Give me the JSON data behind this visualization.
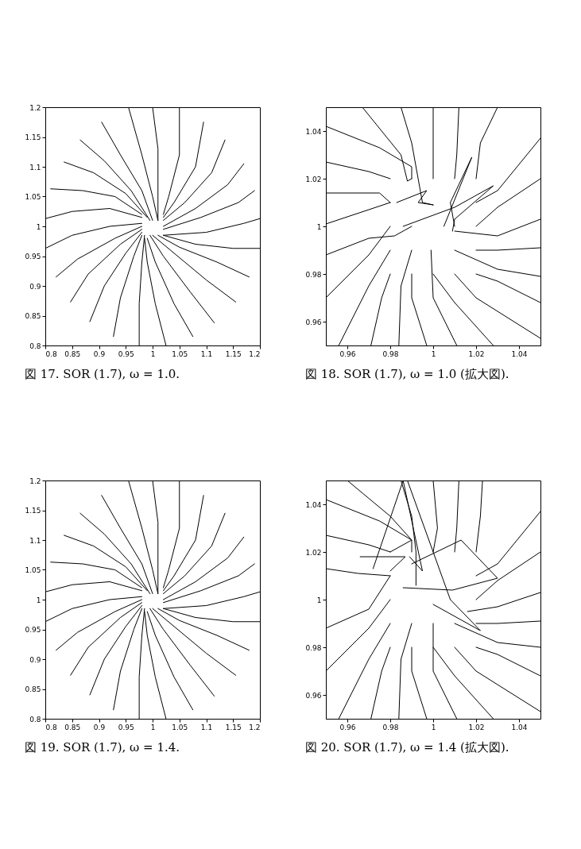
{
  "chart_data": [
    {
      "type": "line",
      "title": "図 17. SOR (1.7), ω = 1.0.",
      "xlim": [
        0.8,
        1.2
      ],
      "ylim": [
        0.8,
        1.2
      ],
      "xticks": [
        0.8,
        0.85,
        0.9,
        0.95,
        1,
        1.05,
        1.1,
        1.15,
        1.2
      ],
      "yticks": [
        0.8,
        0.85,
        0.9,
        0.95,
        1,
        1.05,
        1.1,
        1.15,
        1.2
      ],
      "line_style": "solid",
      "series": [
        {
          "color": "#000000",
          "x": [
            0.955,
            0.98,
            1.0,
            1.01
          ],
          "values": [
            1.2,
            1.12,
            1.05,
            1.01
          ]
        },
        {
          "color": "#000000",
          "x": [
            1.0,
            1.01,
            1.01,
            1.01
          ],
          "values": [
            1.2,
            1.13,
            1.06,
            1.01
          ]
        },
        {
          "color": "#000000",
          "x": [
            1.05,
            1.05,
            1.03,
            1.02
          ],
          "values": [
            1.2,
            1.12,
            1.05,
            1.02
          ]
        },
        {
          "color": "#000000",
          "x": [
            1.095,
            1.08,
            1.04,
            1.02
          ],
          "values": [
            1.175,
            1.1,
            1.04,
            1.015
          ]
        },
        {
          "color": "#000000",
          "x": [
            1.135,
            1.11,
            1.06,
            1.02
          ],
          "values": [
            1.145,
            1.09,
            1.04,
            1.01
          ]
        },
        {
          "color": "#000000",
          "x": [
            1.17,
            1.14,
            1.08,
            1.02
          ],
          "values": [
            1.105,
            1.07,
            1.03,
            1.0
          ]
        },
        {
          "color": "#000000",
          "x": [
            1.19,
            1.16,
            1.09,
            1.02
          ],
          "values": [
            1.06,
            1.04,
            1.015,
            0.995
          ]
        },
        {
          "color": "#000000",
          "x": [
            1.2,
            1.17,
            1.1,
            1.02
          ],
          "values": [
            1.013,
            1.005,
            0.99,
            0.985
          ]
        },
        {
          "color": "#000000",
          "x": [
            1.2,
            1.15,
            1.08,
            1.02
          ],
          "values": [
            0.963,
            0.963,
            0.97,
            0.985
          ]
        },
        {
          "color": "#000000",
          "x": [
            1.18,
            1.12,
            1.05,
            1.01
          ],
          "values": [
            0.915,
            0.94,
            0.965,
            0.985
          ]
        },
        {
          "color": "#000000",
          "x": [
            1.155,
            1.1,
            1.04,
            1.0
          ],
          "values": [
            0.873,
            0.91,
            0.955,
            0.985
          ]
        },
        {
          "color": "#000000",
          "x": [
            1.115,
            1.07,
            1.02,
            0.995
          ],
          "values": [
            0.838,
            0.89,
            0.95,
            0.985
          ]
        },
        {
          "color": "#000000",
          "x": [
            1.075,
            1.04,
            1.005,
            0.99
          ],
          "values": [
            0.815,
            0.87,
            0.94,
            0.98
          ]
        },
        {
          "color": "#000000",
          "x": [
            1.025,
            1.005,
            0.99,
            0.985
          ],
          "values": [
            0.8,
            0.87,
            0.94,
            0.98
          ]
        },
        {
          "color": "#000000",
          "x": [
            0.975,
            0.975,
            0.98,
            0.985
          ],
          "values": [
            0.8,
            0.87,
            0.94,
            0.985
          ]
        },
        {
          "color": "#000000",
          "x": [
            0.927,
            0.94,
            0.965,
            0.98
          ],
          "values": [
            0.815,
            0.88,
            0.95,
            0.985
          ]
        },
        {
          "color": "#000000",
          "x": [
            0.883,
            0.91,
            0.95,
            0.98
          ],
          "values": [
            0.84,
            0.9,
            0.955,
            0.99
          ]
        },
        {
          "color": "#000000",
          "x": [
            0.847,
            0.88,
            0.94,
            0.98
          ],
          "values": [
            0.873,
            0.92,
            0.97,
            0.995
          ]
        },
        {
          "color": "#000000",
          "x": [
            0.82,
            0.86,
            0.93,
            0.98
          ],
          "values": [
            0.915,
            0.945,
            0.98,
            1.0
          ]
        },
        {
          "color": "#000000",
          "x": [
            0.8,
            0.85,
            0.92,
            0.98
          ],
          "values": [
            0.963,
            0.985,
            1.0,
            1.005
          ]
        },
        {
          "color": "#000000",
          "x": [
            0.8,
            0.85,
            0.92,
            0.98
          ],
          "values": [
            1.013,
            1.025,
            1.03,
            1.015
          ]
        },
        {
          "color": "#000000",
          "x": [
            0.81,
            0.87,
            0.93,
            0.98
          ],
          "values": [
            1.063,
            1.06,
            1.05,
            1.02
          ]
        },
        {
          "color": "#000000",
          "x": [
            0.835,
            0.89,
            0.95,
            0.99
          ],
          "values": [
            1.108,
            1.09,
            1.055,
            1.015
          ]
        },
        {
          "color": "#000000",
          "x": [
            0.865,
            0.91,
            0.96,
            0.995
          ],
          "values": [
            1.145,
            1.11,
            1.06,
            1.01
          ]
        },
        {
          "color": "#000000",
          "x": [
            0.905,
            0.94,
            0.98,
            1.0
          ],
          "values": [
            1.175,
            1.12,
            1.06,
            1.01
          ]
        }
      ]
    },
    {
      "type": "line",
      "title": "図 18. SOR (1.7), ω = 1.0 (拡大図).",
      "xlim": [
        0.95,
        1.05
      ],
      "ylim": [
        0.95,
        1.05
      ],
      "xticks": [
        0.96,
        0.98,
        1,
        1.02,
        1.04
      ],
      "yticks": [
        0.96,
        0.98,
        1,
        1.02,
        1.04
      ],
      "line_style": "solid",
      "series": [
        {
          "color": "#000000",
          "x": [
            0.95,
            0.975,
            0.99,
            0.99
          ],
          "values": [
            1.042,
            1.033,
            1.025,
            1.02
          ]
        },
        {
          "color": "#000000",
          "x": [
            0.95,
            0.97,
            0.98
          ],
          "values": [
            1.027,
            1.023,
            1.02
          ]
        },
        {
          "color": "#000000",
          "x": [
            0.967,
            0.985,
            0.988,
            0.99
          ],
          "values": [
            1.05,
            1.03,
            1.019,
            1.02
          ]
        },
        {
          "color": "#000000",
          "x": [
            0.985,
            0.99,
            0.993,
            0.995,
            1.0
          ],
          "values": [
            1.05,
            1.035,
            1.02,
            1.01,
            1.009
          ]
        },
        {
          "color": "#000000",
          "x": [
            1.0,
            1.0,
            1.0
          ],
          "values": [
            1.05,
            1.03,
            1.02
          ]
        },
        {
          "color": "#000000",
          "x": [
            1.012,
            1.011,
            1.01
          ],
          "values": [
            1.05,
            1.03,
            1.02
          ]
        },
        {
          "color": "#000000",
          "x": [
            1.03,
            1.022,
            1.02
          ],
          "values": [
            1.05,
            1.035,
            1.02
          ]
        },
        {
          "color": "#000000",
          "x": [
            1.05,
            1.03,
            1.02
          ],
          "values": [
            1.037,
            1.015,
            1.01
          ]
        },
        {
          "color": "#000000",
          "x": [
            1.05,
            1.03,
            1.02
          ],
          "values": [
            1.02,
            1.008,
            1.0
          ]
        },
        {
          "color": "#000000",
          "x": [
            1.05,
            1.03,
            1.01
          ],
          "values": [
            1.003,
            0.996,
            0.998
          ]
        },
        {
          "color": "#000000",
          "x": [
            1.05,
            1.03,
            1.02
          ],
          "values": [
            0.991,
            0.99,
            0.99
          ]
        },
        {
          "color": "#000000",
          "x": [
            1.05,
            1.03,
            1.01
          ],
          "values": [
            0.979,
            0.982,
            0.99
          ]
        },
        {
          "color": "#000000",
          "x": [
            1.05,
            1.03,
            1.02
          ],
          "values": [
            0.968,
            0.977,
            0.98
          ]
        },
        {
          "color": "#000000",
          "x": [
            1.05,
            1.02,
            1.01
          ],
          "values": [
            0.953,
            0.97,
            0.98
          ]
        },
        {
          "color": "#000000",
          "x": [
            1.028,
            1.01,
            1.0
          ],
          "values": [
            0.95,
            0.968,
            0.98
          ]
        },
        {
          "color": "#000000",
          "x": [
            1.011,
            1.0,
            0.999
          ],
          "values": [
            0.95,
            0.97,
            0.99
          ]
        },
        {
          "color": "#000000",
          "x": [
            0.997,
            0.99,
            0.99
          ],
          "values": [
            0.95,
            0.97,
            0.98
          ]
        },
        {
          "color": "#000000",
          "x": [
            0.984,
            0.985,
            0.99
          ],
          "values": [
            0.95,
            0.975,
            0.99
          ]
        },
        {
          "color": "#000000",
          "x": [
            0.971,
            0.976,
            0.98
          ],
          "values": [
            0.95,
            0.97,
            0.98
          ]
        },
        {
          "color": "#000000",
          "x": [
            0.956,
            0.97,
            0.98
          ],
          "values": [
            0.95,
            0.975,
            0.99
          ]
        },
        {
          "color": "#000000",
          "x": [
            0.95,
            0.97,
            0.98
          ],
          "values": [
            0.97,
            0.988,
            1.0
          ]
        },
        {
          "color": "#000000",
          "x": [
            0.95,
            0.97,
            0.982,
            0.99
          ],
          "values": [
            0.988,
            0.995,
            0.996,
            1.0
          ]
        },
        {
          "color": "#000000",
          "x": [
            0.95,
            0.97,
            0.98
          ],
          "values": [
            1.001,
            1.007,
            1.01
          ]
        },
        {
          "color": "#000000",
          "x": [
            0.95,
            0.975,
            0.98
          ],
          "values": [
            1.014,
            1.014,
            1.01
          ]
        },
        {
          "color": "#000000",
          "x": [
            0.986,
            1.01,
            1.028,
            1.01,
            1.009
          ],
          "values": [
            1.0,
            1.008,
            1.017,
            1.003,
            0.998
          ]
        },
        {
          "color": "#000000",
          "x": [
            1.005,
            1.018,
            1.008,
            1.01
          ],
          "values": [
            1.0,
            1.029,
            1.01,
            1.0
          ]
        },
        {
          "color": "#000000",
          "x": [
            0.983,
            0.997,
            0.993,
            1.0
          ],
          "values": [
            1.01,
            1.015,
            1.01,
            1.009
          ]
        }
      ]
    },
    {
      "type": "line",
      "title": "図 19. SOR (1.7), ω = 1.4.",
      "xlim": [
        0.8,
        1.2
      ],
      "ylim": [
        0.8,
        1.2
      ],
      "xticks": [
        0.8,
        0.85,
        0.9,
        0.95,
        1,
        1.05,
        1.1,
        1.15,
        1.2
      ],
      "yticks": [
        0.8,
        0.85,
        0.9,
        0.95,
        1,
        1.05,
        1.1,
        1.15,
        1.2
      ],
      "line_style": "solid",
      "series": [
        {
          "color": "#000000",
          "x": [
            0.955,
            0.98,
            1.0,
            1.01
          ],
          "values": [
            1.2,
            1.12,
            1.05,
            1.01
          ]
        },
        {
          "color": "#000000",
          "x": [
            1.0,
            1.01,
            1.01,
            1.01
          ],
          "values": [
            1.2,
            1.13,
            1.06,
            1.01
          ]
        },
        {
          "color": "#000000",
          "x": [
            1.05,
            1.05,
            1.03,
            1.02
          ],
          "values": [
            1.2,
            1.12,
            1.05,
            1.02
          ]
        },
        {
          "color": "#000000",
          "x": [
            1.095,
            1.08,
            1.04,
            1.02
          ],
          "values": [
            1.175,
            1.1,
            1.04,
            1.015
          ]
        },
        {
          "color": "#000000",
          "x": [
            1.135,
            1.11,
            1.06,
            1.02
          ],
          "values": [
            1.145,
            1.09,
            1.04,
            1.01
          ]
        },
        {
          "color": "#000000",
          "x": [
            1.17,
            1.14,
            1.08,
            1.02
          ],
          "values": [
            1.105,
            1.07,
            1.03,
            1.0
          ]
        },
        {
          "color": "#000000",
          "x": [
            1.19,
            1.16,
            1.09,
            1.02
          ],
          "values": [
            1.06,
            1.04,
            1.015,
            0.995
          ]
        },
        {
          "color": "#000000",
          "x": [
            1.2,
            1.17,
            1.1,
            1.02
          ],
          "values": [
            1.013,
            1.005,
            0.99,
            0.985
          ]
        },
        {
          "color": "#000000",
          "x": [
            1.2,
            1.15,
            1.08,
            1.02
          ],
          "values": [
            0.963,
            0.963,
            0.97,
            0.985
          ]
        },
        {
          "color": "#000000",
          "x": [
            1.18,
            1.12,
            1.05,
            1.01
          ],
          "values": [
            0.915,
            0.94,
            0.965,
            0.985
          ]
        },
        {
          "color": "#000000",
          "x": [
            1.155,
            1.1,
            1.04,
            1.0
          ],
          "values": [
            0.873,
            0.91,
            0.955,
            0.985
          ]
        },
        {
          "color": "#000000",
          "x": [
            1.115,
            1.07,
            1.02,
            0.995
          ],
          "values": [
            0.838,
            0.89,
            0.95,
            0.985
          ]
        },
        {
          "color": "#000000",
          "x": [
            1.075,
            1.04,
            1.005,
            0.99
          ],
          "values": [
            0.815,
            0.87,
            0.94,
            0.98
          ]
        },
        {
          "color": "#000000",
          "x": [
            1.025,
            1.005,
            0.99,
            0.985
          ],
          "values": [
            0.8,
            0.87,
            0.94,
            0.98
          ]
        },
        {
          "color": "#000000",
          "x": [
            0.975,
            0.975,
            0.98,
            0.985
          ],
          "values": [
            0.8,
            0.87,
            0.94,
            0.985
          ]
        },
        {
          "color": "#000000",
          "x": [
            0.927,
            0.94,
            0.965,
            0.98
          ],
          "values": [
            0.815,
            0.88,
            0.95,
            0.985
          ]
        },
        {
          "color": "#000000",
          "x": [
            0.883,
            0.91,
            0.95,
            0.98
          ],
          "values": [
            0.84,
            0.9,
            0.955,
            0.99
          ]
        },
        {
          "color": "#000000",
          "x": [
            0.847,
            0.88,
            0.94,
            0.98
          ],
          "values": [
            0.873,
            0.92,
            0.97,
            0.995
          ]
        },
        {
          "color": "#000000",
          "x": [
            0.82,
            0.86,
            0.93,
            0.98
          ],
          "values": [
            0.915,
            0.945,
            0.98,
            1.0
          ]
        },
        {
          "color": "#000000",
          "x": [
            0.8,
            0.85,
            0.92,
            0.98
          ],
          "values": [
            0.963,
            0.985,
            1.0,
            1.005
          ]
        },
        {
          "color": "#000000",
          "x": [
            0.8,
            0.85,
            0.92,
            0.98
          ],
          "values": [
            1.013,
            1.025,
            1.03,
            1.015
          ]
        },
        {
          "color": "#000000",
          "x": [
            0.81,
            0.87,
            0.93,
            0.98
          ],
          "values": [
            1.063,
            1.06,
            1.05,
            1.02
          ]
        },
        {
          "color": "#000000",
          "x": [
            0.835,
            0.89,
            0.95,
            0.99
          ],
          "values": [
            1.108,
            1.09,
            1.055,
            1.015
          ]
        },
        {
          "color": "#000000",
          "x": [
            0.865,
            0.91,
            0.96,
            0.995
          ],
          "values": [
            1.145,
            1.11,
            1.06,
            1.01
          ]
        },
        {
          "color": "#000000",
          "x": [
            0.905,
            0.94,
            0.98,
            1.0
          ],
          "values": [
            1.175,
            1.12,
            1.06,
            1.01
          ]
        }
      ]
    },
    {
      "type": "line",
      "title": "図 20. SOR (1.7), ω = 1.4 (拡大図).",
      "xlim": [
        0.95,
        1.05
      ],
      "ylim": [
        0.95,
        1.05
      ],
      "xticks": [
        0.96,
        0.98,
        1,
        1.02,
        1.04
      ],
      "yticks": [
        0.96,
        0.98,
        1,
        1.02,
        1.04
      ],
      "line_style": "solid",
      "series": [
        {
          "color": "#000000",
          "x": [
            0.95,
            0.975,
            0.99,
            0.98
          ],
          "values": [
            1.042,
            1.033,
            1.025,
            1.02
          ]
        },
        {
          "color": "#000000",
          "x": [
            0.95,
            0.97,
            0.98
          ],
          "values": [
            1.027,
            1.023,
            1.02
          ]
        },
        {
          "color": "#000000",
          "x": [
            0.96,
            0.98,
            0.99,
            0.99
          ],
          "values": [
            1.05,
            1.035,
            1.025,
            1.02
          ]
        },
        {
          "color": "#000000",
          "x": [
            0.985,
            0.99,
            0.992,
            0.992
          ],
          "values": [
            1.05,
            1.035,
            1.02,
            1.006
          ]
        },
        {
          "color": "#000000",
          "x": [
            1.0,
            1.002,
            1.0
          ],
          "values": [
            1.05,
            1.03,
            1.02
          ]
        },
        {
          "color": "#000000",
          "x": [
            1.012,
            1.011,
            1.01
          ],
          "values": [
            1.05,
            1.03,
            1.02
          ]
        },
        {
          "color": "#000000",
          "x": [
            1.023,
            1.022,
            1.02
          ],
          "values": [
            1.05,
            1.035,
            1.02
          ]
        },
        {
          "color": "#000000",
          "x": [
            1.05,
            1.03,
            1.02
          ],
          "values": [
            1.037,
            1.015,
            1.01
          ]
        },
        {
          "color": "#000000",
          "x": [
            1.05,
            1.03,
            1.02
          ],
          "values": [
            1.02,
            1.008,
            1.0
          ]
        },
        {
          "color": "#000000",
          "x": [
            1.05,
            1.03,
            1.016
          ],
          "values": [
            1.003,
            0.997,
            0.995
          ]
        },
        {
          "color": "#000000",
          "x": [
            1.05,
            1.03,
            1.02
          ],
          "values": [
            0.991,
            0.99,
            0.99
          ]
        },
        {
          "color": "#000000",
          "x": [
            1.05,
            1.03,
            1.01
          ],
          "values": [
            0.98,
            0.982,
            0.99
          ]
        },
        {
          "color": "#000000",
          "x": [
            1.05,
            1.03,
            1.02
          ],
          "values": [
            0.968,
            0.977,
            0.98
          ]
        },
        {
          "color": "#000000",
          "x": [
            1.05,
            1.02,
            1.01
          ],
          "values": [
            0.953,
            0.97,
            0.98
          ]
        },
        {
          "color": "#000000",
          "x": [
            1.028,
            1.01,
            1.0
          ],
          "values": [
            0.95,
            0.968,
            0.98
          ]
        },
        {
          "color": "#000000",
          "x": [
            1.011,
            1.0,
            1.0
          ],
          "values": [
            0.95,
            0.97,
            0.99
          ]
        },
        {
          "color": "#000000",
          "x": [
            0.997,
            0.99,
            0.99
          ],
          "values": [
            0.95,
            0.97,
            0.98
          ]
        },
        {
          "color": "#000000",
          "x": [
            0.984,
            0.985,
            0.99
          ],
          "values": [
            0.95,
            0.975,
            0.99
          ]
        },
        {
          "color": "#000000",
          "x": [
            0.971,
            0.976,
            0.98
          ],
          "values": [
            0.95,
            0.97,
            0.98
          ]
        },
        {
          "color": "#000000",
          "x": [
            0.956,
            0.97,
            0.98
          ],
          "values": [
            0.95,
            0.975,
            0.99
          ]
        },
        {
          "color": "#000000",
          "x": [
            0.95,
            0.97,
            0.98
          ],
          "values": [
            0.97,
            0.988,
            1.0
          ]
        },
        {
          "color": "#000000",
          "x": [
            0.95,
            0.97,
            0.98
          ],
          "values": [
            0.988,
            0.996,
            1.01
          ]
        },
        {
          "color": "#000000",
          "x": [
            0.95,
            0.965,
            0.98
          ],
          "values": [
            1.013,
            1.011,
            1.01
          ]
        },
        {
          "color": "#000000",
          "x": [
            0.972,
            0.986,
            0.995,
            0.989
          ],
          "values": [
            1.013,
            1.05,
            1.012,
            1.018
          ]
        },
        {
          "color": "#000000",
          "x": [
            0.966,
            0.987,
            0.98
          ],
          "values": [
            1.018,
            1.018,
            1.012
          ]
        },
        {
          "color": "#000000",
          "x": [
            0.988,
            1.008,
            1.022,
            1.0
          ],
          "values": [
            1.05,
            1.0,
            0.987,
            0.998
          ]
        },
        {
          "color": "#000000",
          "x": [
            0.99,
            1.013,
            1.03,
            1.009,
            0.986
          ],
          "values": [
            1.015,
            1.025,
            1.009,
            1.004,
            1.005
          ]
        }
      ]
    }
  ]
}
